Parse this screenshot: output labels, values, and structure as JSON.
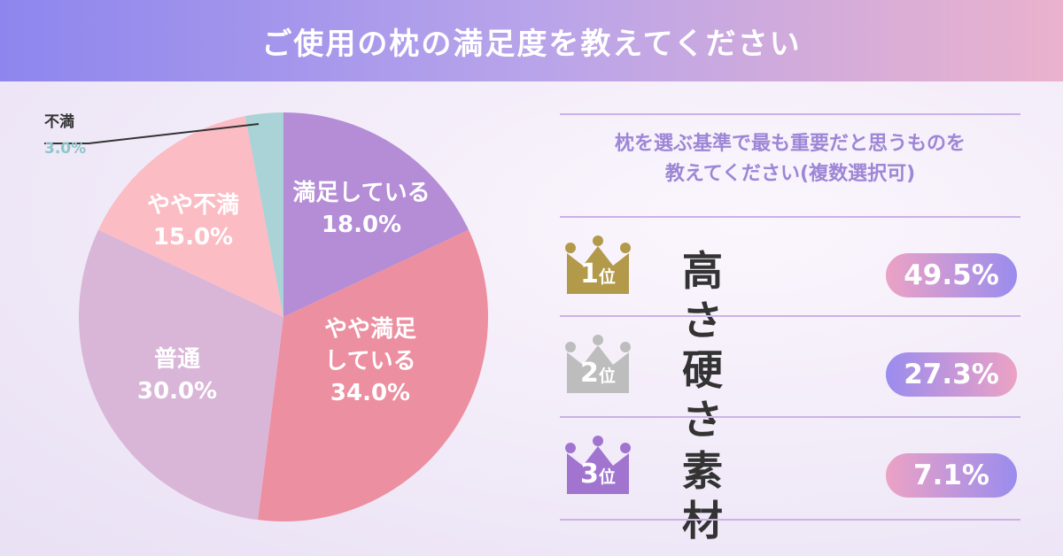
{
  "header": {
    "title": "ご使用の枕の満足度を教えてください"
  },
  "chart_data": {
    "type": "pie",
    "title": "ご使用の枕の満足度を教えてください",
    "categories": [
      "満足している",
      "やや満足している",
      "普通",
      "やや不満",
      "不満"
    ],
    "values": [
      18.0,
      34.0,
      30.0,
      15.0,
      3.0
    ],
    "display_lines": [
      [
        "満足している",
        "18.0%"
      ],
      [
        "やや満足",
        "している",
        "34.0%"
      ],
      [
        "普通",
        "30.0%"
      ],
      [
        "やや不満",
        "15.0%"
      ],
      [
        "不満",
        "3.0%"
      ]
    ],
    "colors": [
      "#b48dd6",
      "#ec8fa0",
      "#d9b6d8",
      "#fbbcc4",
      "#a9d3d6"
    ]
  },
  "ranking": {
    "question_lines": [
      "枕を選ぶ基準で最も重要だと思うものを",
      "教えてください(複数選択可)"
    ],
    "rank_suffix": "位",
    "items": [
      {
        "rank": "1",
        "name": "高さ",
        "percent": "49.5%",
        "crown_color": "#b29a4a"
      },
      {
        "rank": "2",
        "name": "硬さ",
        "percent": "27.3%",
        "crown_color": "#bdbdbd"
      },
      {
        "rank": "3",
        "name": "素材",
        "percent": "7.1%",
        "crown_color": "#a175cf"
      }
    ],
    "pill_gradients": [
      [
        "#eca2c4",
        "#9a8cee"
      ],
      [
        "#9a8cee",
        "#eca2c4"
      ],
      [
        "#eca2c4",
        "#9a8cee"
      ]
    ]
  }
}
